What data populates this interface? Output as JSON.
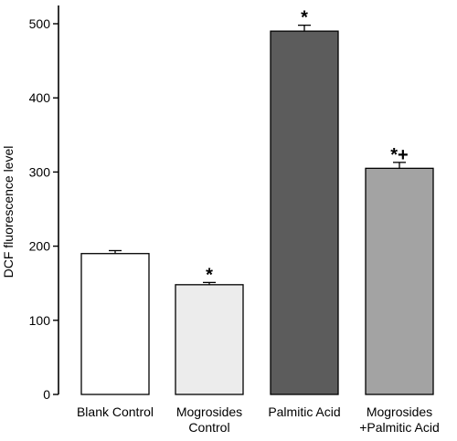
{
  "chart_data": {
    "type": "bar",
    "title": "",
    "xlabel": "",
    "ylabel": "DCF fluorescence level",
    "ylim": [
      0,
      540
    ],
    "yticks": [
      0,
      100,
      200,
      300,
      400,
      500
    ],
    "grid": false,
    "categories": [
      [
        "Blank Control"
      ],
      [
        "Mogrosides",
        "Control"
      ],
      [
        "Palmitic Acid"
      ],
      [
        "Mogrosides",
        "+Palmitic Acid"
      ]
    ],
    "values": [
      190,
      148,
      490,
      305
    ],
    "errors": [
      4,
      3,
      8,
      8
    ],
    "significance": [
      "",
      "*",
      "*",
      "*+"
    ],
    "colors": [
      "#ffffff",
      "#ececec",
      "#5c5c5c",
      "#a3a3a3"
    ]
  }
}
